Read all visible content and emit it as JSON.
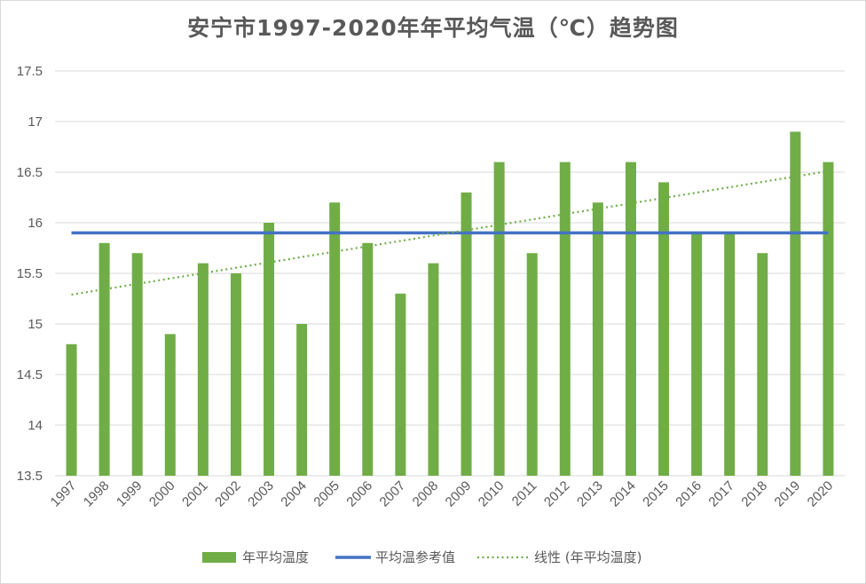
{
  "chart_data": {
    "type": "bar",
    "title": "安宁市1997-2020年年平均气温（℃）趋势图",
    "categories": [
      "1997",
      "1998",
      "1999",
      "2000",
      "2001",
      "2002",
      "2003",
      "2004",
      "2005",
      "2006",
      "2007",
      "2008",
      "2009",
      "2010",
      "2011",
      "2012",
      "2013",
      "2014",
      "2015",
      "2016",
      "2017",
      "2018",
      "2019",
      "2020"
    ],
    "series": [
      {
        "name": "年平均温度",
        "type": "bar",
        "color": "#70ad47",
        "values": [
          14.8,
          15.8,
          15.7,
          14.9,
          15.6,
          15.5,
          16.0,
          15.0,
          16.2,
          15.8,
          15.3,
          15.6,
          16.3,
          16.6,
          15.7,
          16.6,
          16.2,
          16.6,
          16.4,
          15.9,
          15.9,
          15.7,
          16.9,
          16.6
        ]
      },
      {
        "name": "平均温参考值",
        "type": "line",
        "color": "#4472c4",
        "value": 15.9
      },
      {
        "name": "线性 (年平均温度)",
        "type": "trendline",
        "color": "#70ad47",
        "start": 15.29,
        "end": 16.51
      }
    ],
    "ylim": [
      13.5,
      17.5
    ],
    "yticks": [
      "13.5",
      "14",
      "14.5",
      "15",
      "15.5",
      "16",
      "16.5",
      "17",
      "17.5"
    ],
    "grid": true,
    "legend_position": "bottom"
  }
}
